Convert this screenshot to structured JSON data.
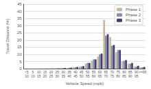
{
  "chart_data": {
    "type": "bar",
    "xlabel": "Vehicle Speed (mph)",
    "ylabel": "Travel Distance (%)",
    "categories": [
      "<5\n10",
      "5\n10",
      "10\n15",
      "15\n20",
      "20\n25",
      "25\n30",
      "30\n35",
      "35\n40",
      "40\n45",
      "45\n50",
      "50\n55",
      "55\n60",
      "60\n65",
      "65\n70",
      "70\n75",
      "75\n80",
      "80\n85",
      "85\n90",
      "90\n95",
      ">=95"
    ],
    "series": [
      {
        "name": "Phase 1",
        "color": "#c8b89a",
        "values": [
          0.05,
          0.05,
          0.1,
          0.1,
          0.2,
          0.3,
          0.5,
          0.6,
          1.0,
          1.5,
          3.5,
          5.5,
          8.5,
          34.0,
          22.0,
          11.5,
          5.0,
          3.5,
          1.5,
          1.0
        ]
      },
      {
        "name": "Phase 2",
        "color": "#8090b0",
        "values": [
          0.05,
          0.05,
          0.1,
          0.1,
          0.2,
          0.3,
          0.5,
          0.7,
          1.1,
          1.6,
          4.0,
          6.5,
          10.0,
          23.0,
          16.0,
          13.0,
          5.5,
          3.5,
          1.5,
          1.0
        ]
      },
      {
        "name": "Phase 3",
        "color": "#4a3870",
        "values": [
          0.05,
          0.05,
          0.1,
          0.15,
          0.2,
          0.3,
          0.5,
          0.7,
          1.2,
          1.8,
          4.0,
          6.5,
          10.5,
          24.0,
          16.5,
          13.0,
          6.0,
          4.0,
          2.0,
          1.2
        ]
      }
    ],
    "ylim": [
      0,
      45
    ],
    "yticks": [
      0,
      5,
      10,
      15,
      20,
      25,
      30,
      35,
      40,
      45
    ],
    "grid": true,
    "legend": "upper right"
  }
}
